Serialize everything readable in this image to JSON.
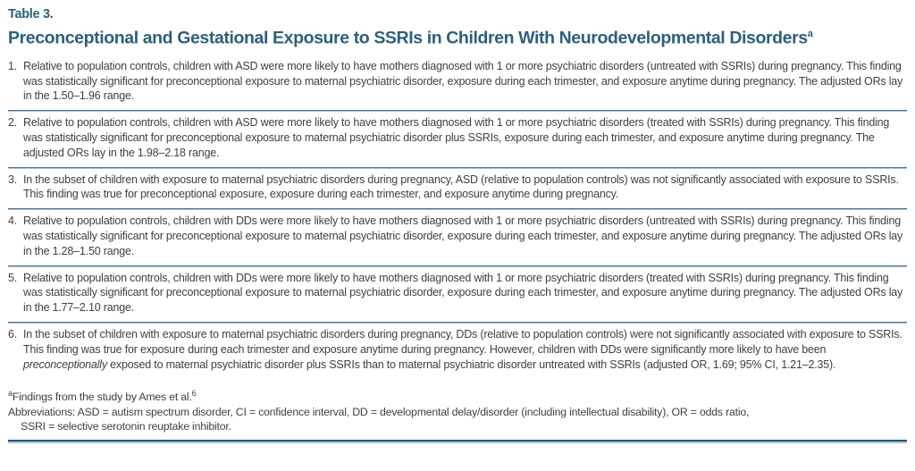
{
  "colors": {
    "heading": "#2d5f7e",
    "body_text": "#414042",
    "divider": "#447190",
    "divider_light": "#a9c3d2",
    "bottom_line": "#24536f"
  },
  "header": {
    "label": "Table 3.",
    "title": "Preconceptional and Gestational Exposure to SSRIs in Children With Neurodevelopmental Disorders",
    "title_note": "a"
  },
  "items": [
    {
      "number": "1.",
      "text": "Relative to population controls, children with ASD were more likely to have mothers diagnosed with 1 or more psychiatric disorders (untreated with SSRIs) during pregnancy. This finding was statistically significant for preconceptional exposure to maternal psychiatric disorder, exposure during each trimester, and exposure anytime during pregnancy. The adjusted ORs lay in the 1.50–1.96 range."
    },
    {
      "number": "2.",
      "text": "Relative to population controls, children with ASD were more likely to have mothers diagnosed with 1 or more psychiatric disorders (treated with SSRIs) during pregnancy. This finding was statistically significant for preconceptional exposure to maternal psychiatric disorder plus SSRIs, exposure during each trimester, and exposure anytime during pregnancy. The adjusted ORs lay in the 1.98–2.18 range."
    },
    {
      "number": "3.",
      "text": "In the subset of children with exposure to maternal psychiatric disorders during pregnancy, ASD (relative to population controls) was not significantly associated with exposure to SSRIs. This finding was true for preconceptional exposure, exposure during each trimester, and exposure anytime during pregnancy."
    },
    {
      "number": "4.",
      "text": "Relative to population controls, children with DDs were more likely to have mothers diagnosed with 1 or more psychiatric disorders (untreated with SSRIs) during pregnancy. This finding was statistically significant for preconceptional exposure to maternal psychiatric disorder, exposure during each trimester, and exposure anytime during pregnancy. The adjusted ORs lay in the 1.28–1.50 range."
    },
    {
      "number": "5.",
      "text": "Relative to population controls, children with DDs were more likely to have mothers diagnosed with 1 or more psychiatric disorders (treated with SSRIs) during pregnancy. This finding was statistically significant for preconceptional exposure to maternal psychiatric disorder, exposure during each trimester, and exposure anytime during pregnancy. The adjusted ORs lay in the 1.77–2.10 range."
    },
    {
      "number": "6.",
      "text_start": "In the subset of children with exposure to maternal psychiatric disorders during pregnancy, DDs (relative to population controls) were not significantly associated with exposure to SSRIs. This finding was true for exposure during each trimester and exposure anytime during pregnancy. However, children with DDs were significantly more likely to have been ",
      "italic_word": "preconceptionally",
      "text_end": " exposed to maternal psychiatric disorder plus SSRIs than to maternal psychiatric disorder untreated with SSRIs (adjusted OR, 1.69; 95% CI, 1.21–2.35)."
    }
  ],
  "footnotes": {
    "note_marker": "a",
    "note_text": "Findings from the study by Ames et al.",
    "note_ref": "6",
    "abbreviations": "Abbreviations: ASD = autism spectrum disorder, CI = confidence interval, DD = developmental delay/disorder (including intellectual disability), OR = odds ratio,",
    "abbreviations_cont": "SSRI = selective serotonin reuptake inhibitor."
  }
}
